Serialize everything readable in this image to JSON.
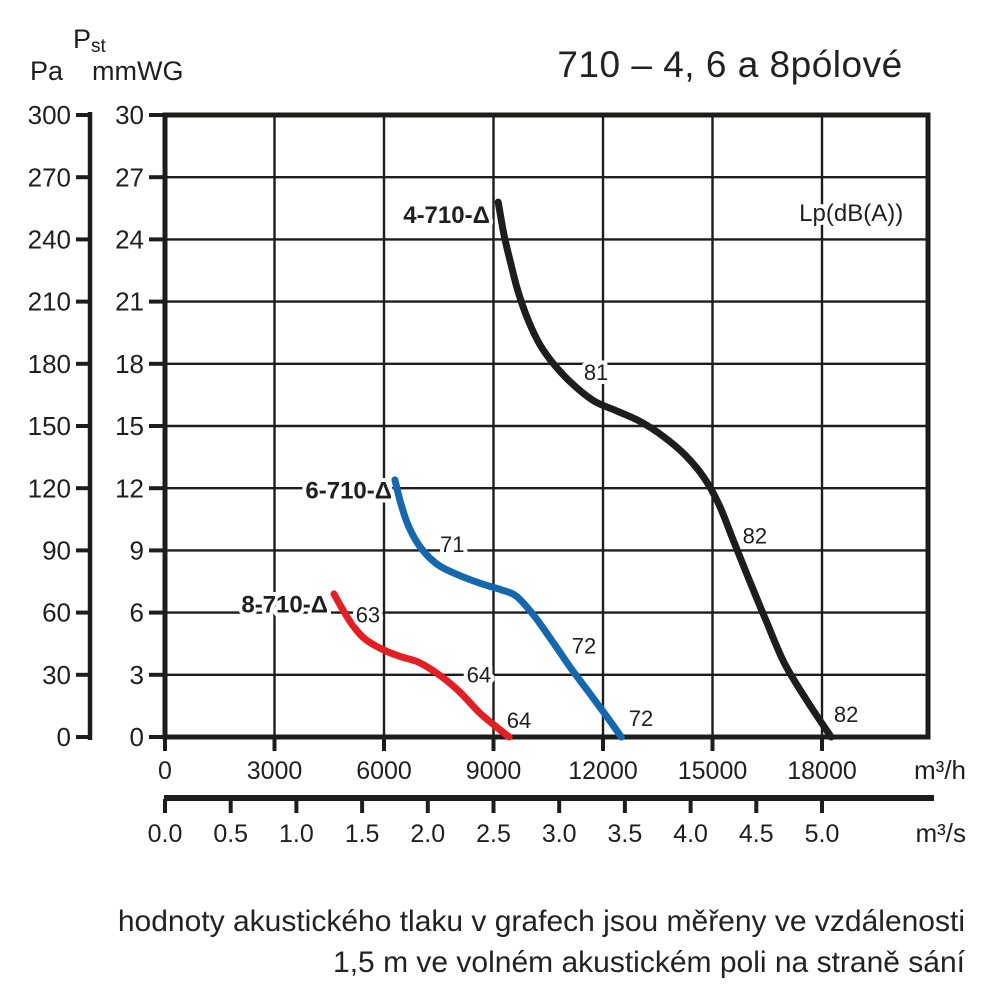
{
  "title": "710 – 4, 6 a 8pólové",
  "pressure_symbol": {
    "base": "P",
    "sub": "st"
  },
  "caption": {
    "line1": "hodnoty akustického tlaku v grafech jsou měřeny ve vzdálenosti",
    "line2": "1,5 m ve volném akustickém poli na straně sání"
  },
  "chart_data": {
    "type": "line",
    "title": "710 – 4, 6 a 8pólové",
    "grid": true,
    "axes": {
      "pa": {
        "label": "Pa",
        "ticks": [
          300,
          270,
          240,
          210,
          180,
          150,
          120,
          90,
          60,
          30,
          0
        ],
        "range": [
          0,
          300
        ]
      },
      "mmwg": {
        "label": "mmWG",
        "ticks": [
          30,
          27,
          24,
          21,
          18,
          15,
          12,
          9,
          6,
          3,
          0
        ],
        "range": [
          0,
          30
        ]
      },
      "m3h": {
        "unit": "m³/h",
        "ticks": [
          0,
          3000,
          6000,
          9000,
          12000,
          15000,
          18000
        ],
        "range": [
          0,
          18000
        ]
      },
      "m3s": {
        "unit": "m³/s",
        "ticks": [
          "0.0",
          "0.5",
          "1.0",
          "1.5",
          "2.0",
          "2.5",
          "3.0",
          "3.5",
          "4.0",
          "4.5",
          "5.0"
        ],
        "range": [
          0,
          5
        ]
      }
    },
    "noise_label": {
      "text": "Lp(dB(A))",
      "at": [
        18800,
        253
      ]
    },
    "series": [
      {
        "name": "4-710-Δ",
        "color": "#1d1d1b",
        "label_at": [
          8900,
          252
        ],
        "points": [
          [
            9130,
            258
          ],
          [
            9290,
            242
          ],
          [
            9480,
            228
          ],
          [
            9670,
            215
          ],
          [
            9950,
            201
          ],
          [
            10280,
            189
          ],
          [
            10690,
            179
          ],
          [
            11180,
            170
          ],
          [
            11760,
            162
          ],
          [
            12410,
            157
          ],
          [
            13040,
            152
          ],
          [
            13650,
            145
          ],
          [
            14250,
            136
          ],
          [
            14770,
            125
          ],
          [
            15180,
            112
          ],
          [
            15590,
            94
          ],
          [
            16000,
            76
          ],
          [
            16470,
            56
          ],
          [
            16960,
            36
          ],
          [
            17570,
            18
          ],
          [
            18250,
            0
          ]
        ]
      },
      {
        "name": "6-710-Δ",
        "color": "#1668ae",
        "label_at": [
          6220,
          119
        ],
        "points": [
          [
            6300,
            124
          ],
          [
            6470,
            112
          ],
          [
            6690,
            101
          ],
          [
            7020,
            91
          ],
          [
            7480,
            83
          ],
          [
            8060,
            78
          ],
          [
            8660,
            74
          ],
          [
            9210,
            71
          ],
          [
            9620,
            68
          ],
          [
            10090,
            59
          ],
          [
            10580,
            47
          ],
          [
            11130,
            33
          ],
          [
            11680,
            20
          ],
          [
            12140,
            9
          ],
          [
            12500,
            0
          ]
        ]
      },
      {
        "name": "8-710-Δ",
        "color": "#e31e24",
        "label_at": [
          4465,
          64
        ],
        "points": [
          [
            4630,
            69
          ],
          [
            4820,
            63
          ],
          [
            5100,
            55
          ],
          [
            5430,
            48
          ],
          [
            5870,
            43
          ],
          [
            6410,
            39
          ],
          [
            6960,
            36
          ],
          [
            7510,
            30
          ],
          [
            8060,
            22
          ],
          [
            8600,
            12
          ],
          [
            9070,
            5
          ],
          [
            9430,
            0
          ]
        ]
      }
    ],
    "noise_annotations": [
      {
        "series": "4-710-Δ",
        "text": "81",
        "at": [
          11810,
          176
        ]
      },
      {
        "series": "4-710-Δ",
        "text": "82",
        "at": [
          16160,
          97
        ]
      },
      {
        "series": "4-710-Δ",
        "text": "82",
        "at": [
          18660,
          11
        ]
      },
      {
        "series": "6-710-Δ",
        "text": "71",
        "at": [
          7870,
          93
        ]
      },
      {
        "series": "6-710-Δ",
        "text": "72",
        "at": [
          11480,
          44
        ]
      },
      {
        "series": "6-710-Δ",
        "text": "72",
        "at": [
          13040,
          9
        ]
      },
      {
        "series": "8-710-Δ",
        "text": "63",
        "at": [
          5560,
          59
        ]
      },
      {
        "series": "8-710-Δ",
        "text": "64",
        "at": [
          8600,
          30
        ]
      },
      {
        "series": "8-710-Δ",
        "text": "64",
        "at": [
          9700,
          8
        ]
      }
    ],
    "colors": {
      "grid": "#1d1d1b",
      "text": "#1f1f1f",
      "halo": "#ffffff"
    }
  }
}
